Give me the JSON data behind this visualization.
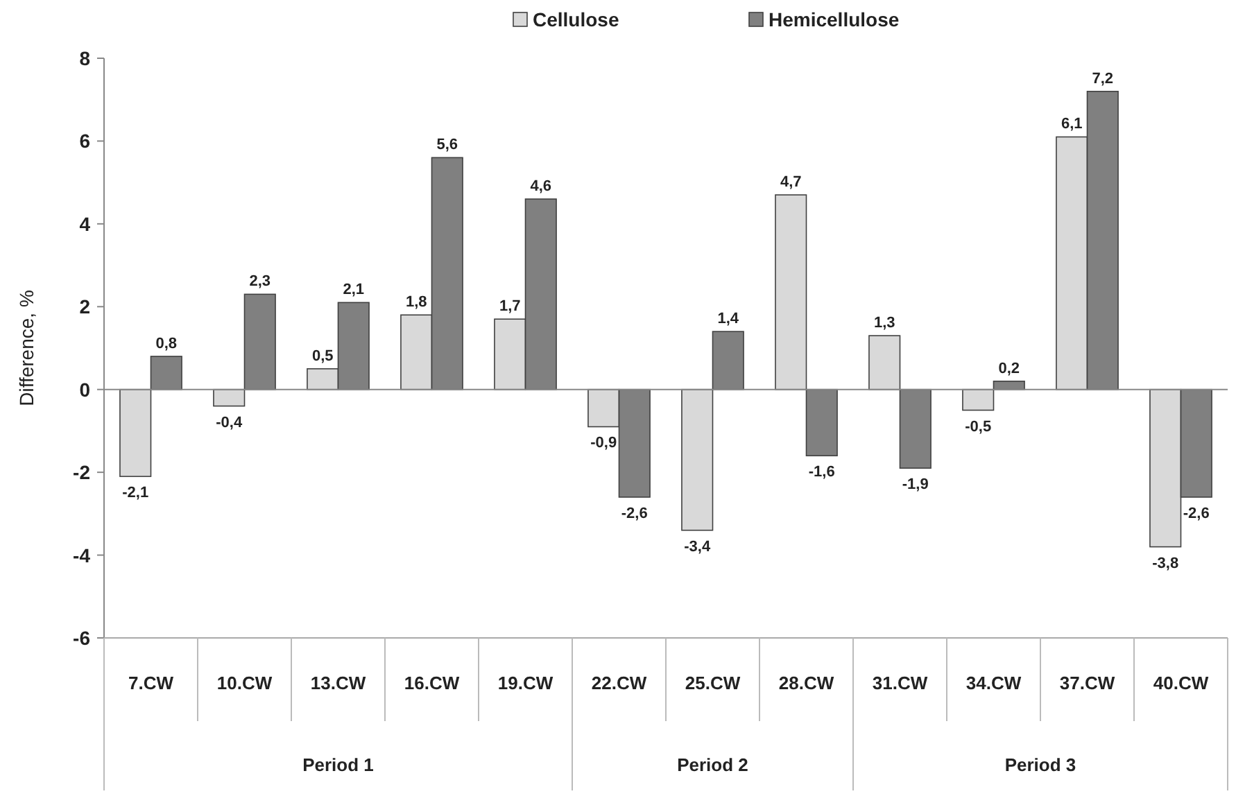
{
  "chart_data": {
    "type": "bar",
    "ylabel": "Difference, %",
    "categories": [
      "7.CW",
      "10.CW",
      "13.CW",
      "16.CW",
      "19.CW",
      "22.CW",
      "25.CW",
      "28.CW",
      "31.CW",
      "34.CW",
      "37.CW",
      "40.CW"
    ],
    "series": [
      {
        "name": "Cellulose",
        "color": "#d9d9d9",
        "values": [
          -2.1,
          -0.4,
          0.5,
          1.8,
          1.7,
          -0.9,
          -3.4,
          4.7,
          1.3,
          -0.5,
          6.1,
          -3.8
        ],
        "value_labels": [
          "-2,1",
          "-0,4",
          "0,5",
          "1,8",
          "1,7",
          "-0,9",
          "-3,4",
          "4,7",
          "1,3",
          "-0,5",
          "6,1",
          "-3,8"
        ]
      },
      {
        "name": "Hemicellulose",
        "color": "#808080",
        "values": [
          0.8,
          2.3,
          2.1,
          5.6,
          4.6,
          -2.6,
          1.4,
          -1.6,
          -1.9,
          0.2,
          7.2,
          -2.6
        ],
        "value_labels": [
          "0,8",
          "2,3",
          "2,1",
          "5,6",
          "4,6",
          "-2,6",
          "1,4",
          "-1,6",
          "-1,9",
          "0,2",
          "7,2",
          "-2,6"
        ]
      }
    ],
    "annotations": [
      "Period 1",
      "Period 2",
      "Period 3"
    ],
    "ylim": [
      -6,
      8
    ],
    "yticks": [
      -6,
      -4,
      -2,
      0,
      2,
      4,
      6,
      8
    ],
    "legend": "top"
  }
}
